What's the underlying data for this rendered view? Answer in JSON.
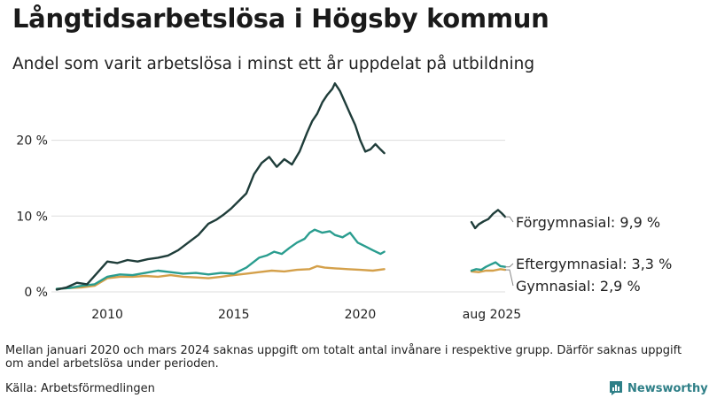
{
  "title": "Långtidsarbetslösa i Högsby kommun",
  "subtitle": "Andel som varit arbetslösa i minst ett år uppdelat på utbildning",
  "note": "Mellan januari 2020 och mars 2024 saknas uppgift om totalt antal invånare i respektive grupp. Därför saknas uppgift om andel arbetslösa under perioden.",
  "source": "Källa: Arbetsförmedlingen",
  "brand": {
    "name": "Newsworthy",
    "icon": "bar-chart-speech-bubble-icon"
  },
  "colors": {
    "forgymnasial": "#1f3d3a",
    "eftergymnasial": "#2a9d8f",
    "gymnasial": "#d4a04a",
    "grid": "#dddddd",
    "text": "#222222"
  },
  "chart_data": {
    "type": "line",
    "x_unit": "year",
    "xlim": [
      2008,
      2021
    ],
    "ylim": [
      0,
      28
    ],
    "grid": true,
    "x_ticks": [
      {
        "value": 2010,
        "label": "2010"
      },
      {
        "value": 2015,
        "label": "2015"
      },
      {
        "value": 2020,
        "label": "2020"
      }
    ],
    "y_ticks": [
      {
        "value": 0,
        "label": "0 %"
      },
      {
        "value": 10,
        "label": "10 %"
      },
      {
        "value": 20,
        "label": "20 %"
      }
    ],
    "recent_period_label": "aug 2025",
    "series": [
      {
        "key": "forgymnasial",
        "label": "Förgymnasial: 9,9 %",
        "x": [
          2008.0,
          2008.4,
          2008.8,
          2009.2,
          2009.6,
          2010.0,
          2010.4,
          2010.8,
          2011.2,
          2011.6,
          2012.0,
          2012.4,
          2012.8,
          2013.2,
          2013.6,
          2014.0,
          2014.3,
          2014.6,
          2014.9,
          2015.2,
          2015.5,
          2015.8,
          2016.1,
          2016.4,
          2016.7,
          2017.0,
          2017.3,
          2017.6,
          2017.9,
          2018.1,
          2018.3,
          2018.5,
          2018.7,
          2018.9,
          2019.0,
          2019.2,
          2019.4,
          2019.6,
          2019.8,
          2020.0,
          2020.2,
          2020.4,
          2020.6,
          2020.8,
          2020.95
        ],
        "y": [
          0.3,
          0.6,
          1.2,
          1.0,
          2.5,
          4.0,
          3.8,
          4.2,
          4.0,
          4.3,
          4.5,
          4.8,
          5.5,
          6.5,
          7.5,
          9.0,
          9.5,
          10.2,
          11.0,
          12.0,
          13.0,
          15.5,
          17.0,
          17.8,
          16.5,
          17.5,
          16.8,
          18.5,
          21.0,
          22.5,
          23.5,
          25.0,
          26.0,
          26.8,
          27.5,
          26.5,
          25.0,
          23.5,
          22.0,
          20.0,
          18.5,
          18.8,
          19.5,
          18.8,
          18.3
        ]
      },
      {
        "key": "eftergymnasial",
        "label": "Eftergymnasial: 3,3 %",
        "x": [
          2008.0,
          2008.5,
          2009.0,
          2009.5,
          2010.0,
          2010.5,
          2011.0,
          2011.5,
          2012.0,
          2012.5,
          2013.0,
          2013.5,
          2014.0,
          2014.5,
          2015.0,
          2015.5,
          2016.0,
          2016.3,
          2016.6,
          2016.9,
          2017.2,
          2017.5,
          2017.8,
          2018.0,
          2018.2,
          2018.5,
          2018.8,
          2019.0,
          2019.3,
          2019.6,
          2019.9,
          2020.2,
          2020.5,
          2020.8,
          2020.95
        ],
        "y": [
          0.4,
          0.5,
          0.8,
          1.0,
          2.0,
          2.3,
          2.2,
          2.5,
          2.8,
          2.6,
          2.4,
          2.5,
          2.3,
          2.5,
          2.4,
          3.2,
          4.5,
          4.8,
          5.3,
          5.0,
          5.8,
          6.5,
          7.0,
          7.8,
          8.2,
          7.8,
          8.0,
          7.5,
          7.2,
          7.8,
          6.5,
          6.0,
          5.5,
          5.0,
          5.3
        ]
      },
      {
        "key": "gymnasial",
        "label": "Gymnasial: 2,9 %",
        "x": [
          2008.0,
          2008.5,
          2009.0,
          2009.5,
          2010.0,
          2010.5,
          2011.0,
          2011.5,
          2012.0,
          2012.5,
          2013.0,
          2013.5,
          2014.0,
          2014.5,
          2015.0,
          2015.5,
          2016.0,
          2016.5,
          2017.0,
          2017.5,
          2018.0,
          2018.3,
          2018.6,
          2019.0,
          2019.5,
          2020.0,
          2020.5,
          2020.95
        ],
        "y": [
          0.4,
          0.5,
          0.6,
          0.8,
          1.8,
          2.0,
          2.0,
          2.1,
          2.0,
          2.2,
          2.0,
          1.9,
          1.8,
          2.0,
          2.2,
          2.4,
          2.6,
          2.8,
          2.7,
          2.9,
          3.0,
          3.4,
          3.2,
          3.1,
          3.0,
          2.9,
          2.8,
          3.0
        ]
      }
    ],
    "recent_series": [
      {
        "key": "forgymnasial",
        "x": [
          2024.2,
          2024.35,
          2024.5,
          2024.7,
          2024.9,
          2025.1,
          2025.3,
          2025.45,
          2025.6
        ],
        "y": [
          9.2,
          8.4,
          8.9,
          9.3,
          9.6,
          10.3,
          10.8,
          10.4,
          9.9
        ]
      },
      {
        "key": "eftergymnasial",
        "x": [
          2024.2,
          2024.4,
          2024.6,
          2024.8,
          2025.0,
          2025.2,
          2025.4,
          2025.6
        ],
        "y": [
          2.8,
          3.0,
          2.9,
          3.3,
          3.6,
          3.9,
          3.4,
          3.3
        ]
      },
      {
        "key": "gymnasial",
        "x": [
          2024.2,
          2024.5,
          2024.8,
          2025.1,
          2025.4,
          2025.6
        ],
        "y": [
          2.7,
          2.6,
          2.8,
          2.8,
          3.0,
          2.9
        ]
      }
    ]
  }
}
